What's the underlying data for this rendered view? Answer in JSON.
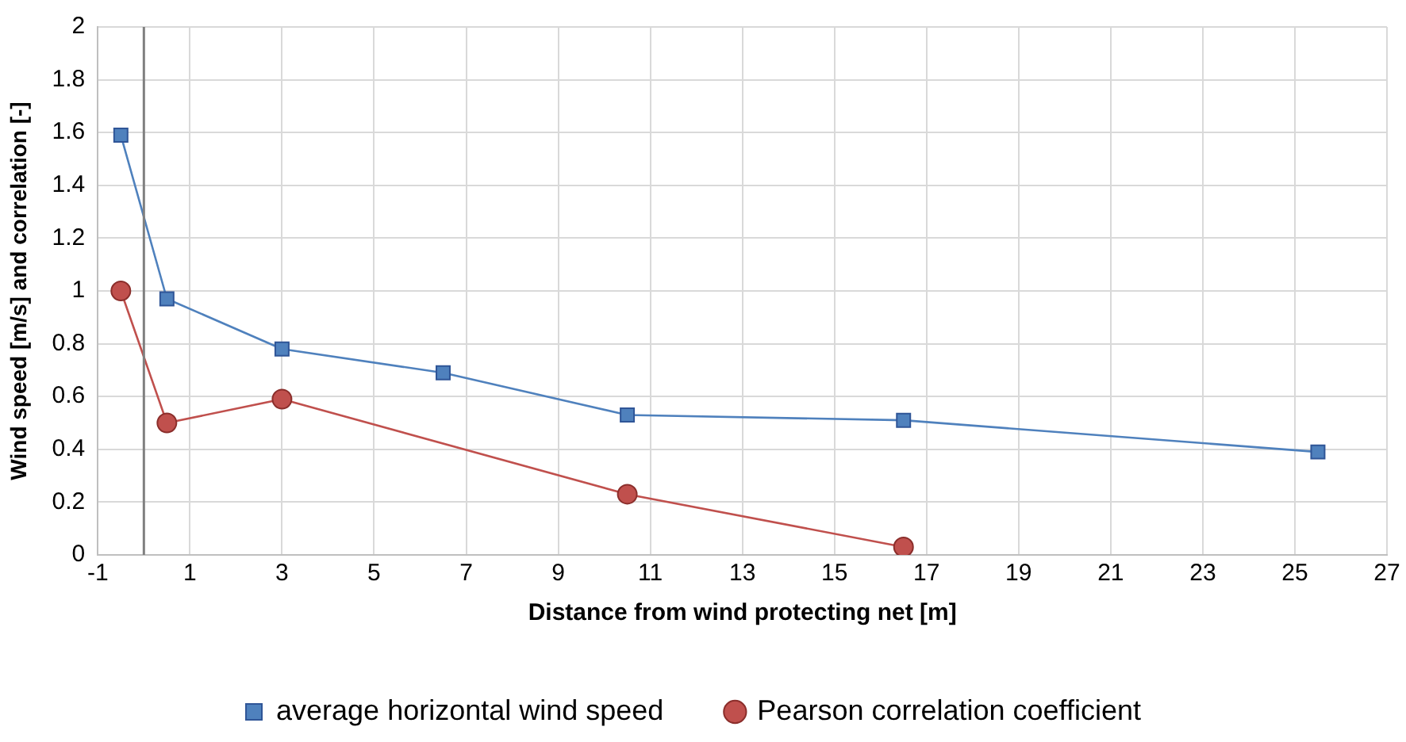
{
  "chart_data": {
    "type": "line",
    "xlabel": "Distance from wind protecting net [m]",
    "ylabel": "Wind speed [m/s] and correlation [-]",
    "series": [
      {
        "name": "average horizontal wind speed",
        "color": "#4f81bd",
        "marker": "square",
        "x": [
          -0.5,
          0.5,
          3,
          6.5,
          10.5,
          16.5,
          25.5
        ],
        "values": [
          1.59,
          0.97,
          0.78,
          0.69,
          0.53,
          0.51,
          0.39
        ]
      },
      {
        "name": "Pearson correlation coefficient",
        "color": "#c0504d",
        "marker": "circle",
        "x": [
          -0.5,
          0.5,
          3,
          10.5,
          16.5
        ],
        "values": [
          1.0,
          0.5,
          0.59,
          0.23,
          0.03
        ]
      }
    ],
    "xlim": [
      -1,
      27
    ],
    "xticks": [
      -1,
      1,
      3,
      5,
      7,
      9,
      11,
      13,
      15,
      17,
      19,
      21,
      23,
      25,
      27
    ],
    "ylim": [
      0,
      2
    ],
    "yticks": [
      0,
      0.2,
      0.4,
      0.6,
      0.8,
      1,
      1.2,
      1.4,
      1.6,
      1.8,
      2
    ],
    "ref_lines": [
      {
        "axis": "x",
        "value": 0,
        "color": "#808080"
      }
    ],
    "grid": true,
    "legend": "bottom"
  }
}
